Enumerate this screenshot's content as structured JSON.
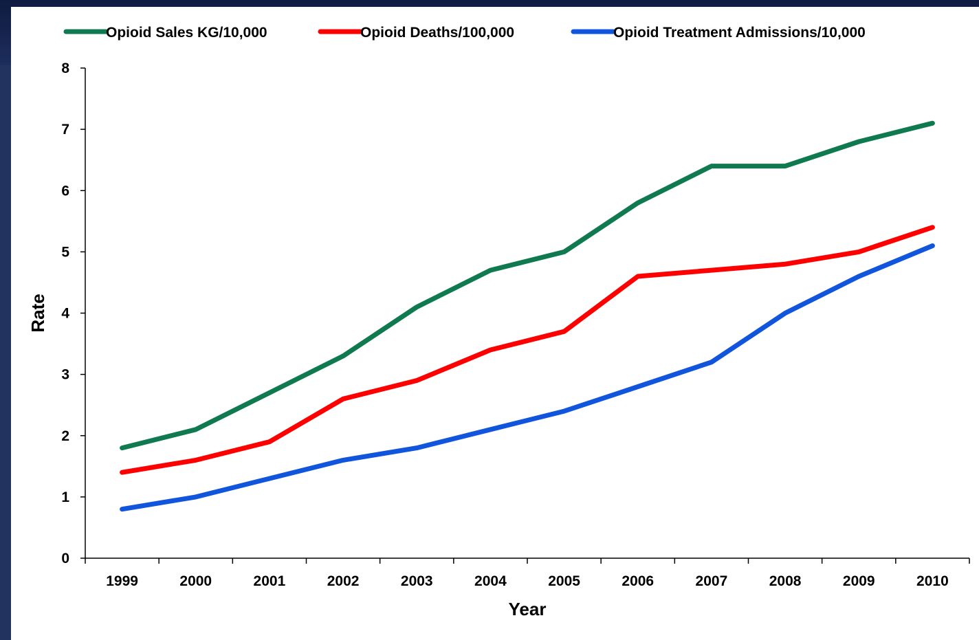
{
  "chart_data": {
    "type": "line",
    "title": "",
    "xlabel": "Year",
    "ylabel": "Rate",
    "x": [
      "1999",
      "2000",
      "2001",
      "2002",
      "2003",
      "2004",
      "2005",
      "2006",
      "2007",
      "2008",
      "2009",
      "2010"
    ],
    "ylim": [
      0,
      8
    ],
    "yticks": [
      0,
      1,
      2,
      3,
      4,
      5,
      6,
      7,
      8
    ],
    "grid": false,
    "legend_position": "top",
    "series": [
      {
        "name": "Opioid Sales KG/10,000",
        "color": "#0f7a4f",
        "values": [
          1.8,
          2.1,
          2.7,
          3.3,
          4.1,
          4.7,
          5.0,
          5.8,
          6.4,
          6.4,
          6.8,
          7.1
        ]
      },
      {
        "name": "Opioid Deaths/100,000",
        "color": "#ff0000",
        "values": [
          1.4,
          1.6,
          1.9,
          2.6,
          2.9,
          3.4,
          3.7,
          4.6,
          4.7,
          4.8,
          5.0,
          5.4
        ]
      },
      {
        "name": "Opioid Treatment Admissions/10,000",
        "color": "#1155dd",
        "values": [
          0.8,
          1.0,
          1.3,
          1.6,
          1.8,
          2.1,
          2.4,
          2.8,
          3.2,
          4.0,
          4.6,
          5.1
        ]
      }
    ]
  }
}
